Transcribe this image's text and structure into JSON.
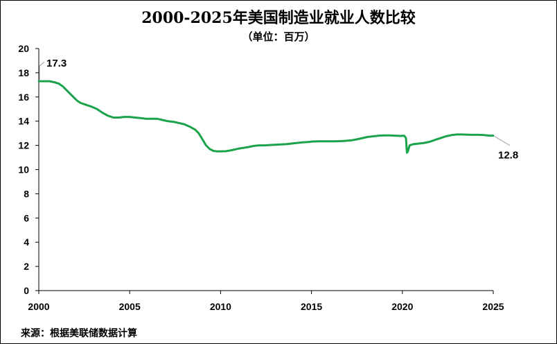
{
  "title": "2000-2025年美国制造业就业人数比较",
  "subtitle": "（单位：百万）",
  "source": "来源：根据美联储数据计算",
  "colors": {
    "line": "#1aa34a",
    "axis": "#000000",
    "leader": "#9e9e9e"
  },
  "chart_data": {
    "type": "line",
    "title": "2000-2025年美国制造业就业人数比较",
    "subtitle": "（单位：百万）",
    "xlabel": "",
    "ylabel": "",
    "xlim": [
      2000,
      2025
    ],
    "ylim": [
      0,
      20
    ],
    "x_ticks": [
      "2000",
      "2005",
      "2010",
      "2015",
      "2020",
      "2025"
    ],
    "y_ticks": [
      "0",
      "2",
      "4",
      "6",
      "8",
      "10",
      "12",
      "14",
      "16",
      "18",
      "20"
    ],
    "grid": false,
    "legend": "none",
    "series": [
      {
        "x": [
          2000.0,
          2000.3,
          2000.6,
          2000.9,
          2001.1,
          2001.3,
          2001.5,
          2001.7,
          2001.9,
          2002.1,
          2002.3,
          2002.6,
          2002.9,
          2003.2,
          2003.5,
          2003.8,
          2004.1,
          2004.4,
          2004.7,
          2005.0,
          2005.3,
          2005.6,
          2005.9,
          2006.2,
          2006.5,
          2006.8,
          2007.1,
          2007.4,
          2007.7,
          2008.0,
          2008.3,
          2008.6,
          2008.8,
          2009.0,
          2009.2,
          2009.4,
          2009.6,
          2009.8,
          2010.0,
          2010.3,
          2010.6,
          2010.9,
          2011.2,
          2011.5,
          2011.8,
          2012.1,
          2012.4,
          2012.7,
          2013.0,
          2013.3,
          2013.6,
          2013.9,
          2014.2,
          2014.5,
          2014.8,
          2015.1,
          2015.4,
          2015.7,
          2016.0,
          2016.3,
          2016.6,
          2016.9,
          2017.2,
          2017.5,
          2017.8,
          2018.1,
          2018.4,
          2018.7,
          2019.0,
          2019.3,
          2019.6,
          2019.9,
          2020.1,
          2020.2,
          2020.25,
          2020.3,
          2020.4,
          2020.6,
          2020.9,
          2021.2,
          2021.5,
          2021.8,
          2022.1,
          2022.4,
          2022.7,
          2023.0,
          2023.3,
          2023.6,
          2023.9,
          2024.2,
          2024.5,
          2024.8,
          2025.0
        ],
        "values": [
          17.3,
          17.3,
          17.3,
          17.2,
          17.1,
          16.9,
          16.6,
          16.3,
          16.0,
          15.7,
          15.5,
          15.35,
          15.2,
          15.0,
          14.7,
          14.45,
          14.3,
          14.3,
          14.35,
          14.35,
          14.3,
          14.25,
          14.2,
          14.2,
          14.2,
          14.1,
          14.0,
          13.95,
          13.85,
          13.75,
          13.55,
          13.3,
          13.0,
          12.5,
          12.0,
          11.7,
          11.55,
          11.5,
          11.5,
          11.52,
          11.6,
          11.7,
          11.78,
          11.85,
          11.95,
          12.0,
          12.0,
          12.03,
          12.05,
          12.08,
          12.1,
          12.15,
          12.2,
          12.25,
          12.28,
          12.32,
          12.33,
          12.33,
          12.33,
          12.33,
          12.35,
          12.38,
          12.42,
          12.5,
          12.6,
          12.7,
          12.75,
          12.8,
          12.82,
          12.82,
          12.8,
          12.78,
          12.8,
          12.6,
          11.4,
          11.5,
          12.0,
          12.1,
          12.15,
          12.2,
          12.3,
          12.45,
          12.6,
          12.75,
          12.85,
          12.9,
          12.9,
          12.88,
          12.87,
          12.87,
          12.85,
          12.8,
          12.8
        ]
      }
    ],
    "annotations": [
      {
        "text": "17.3",
        "x": 2000.0,
        "y": 17.3
      },
      {
        "text": "12.8",
        "x": 2025.0,
        "y": 12.8
      }
    ]
  }
}
